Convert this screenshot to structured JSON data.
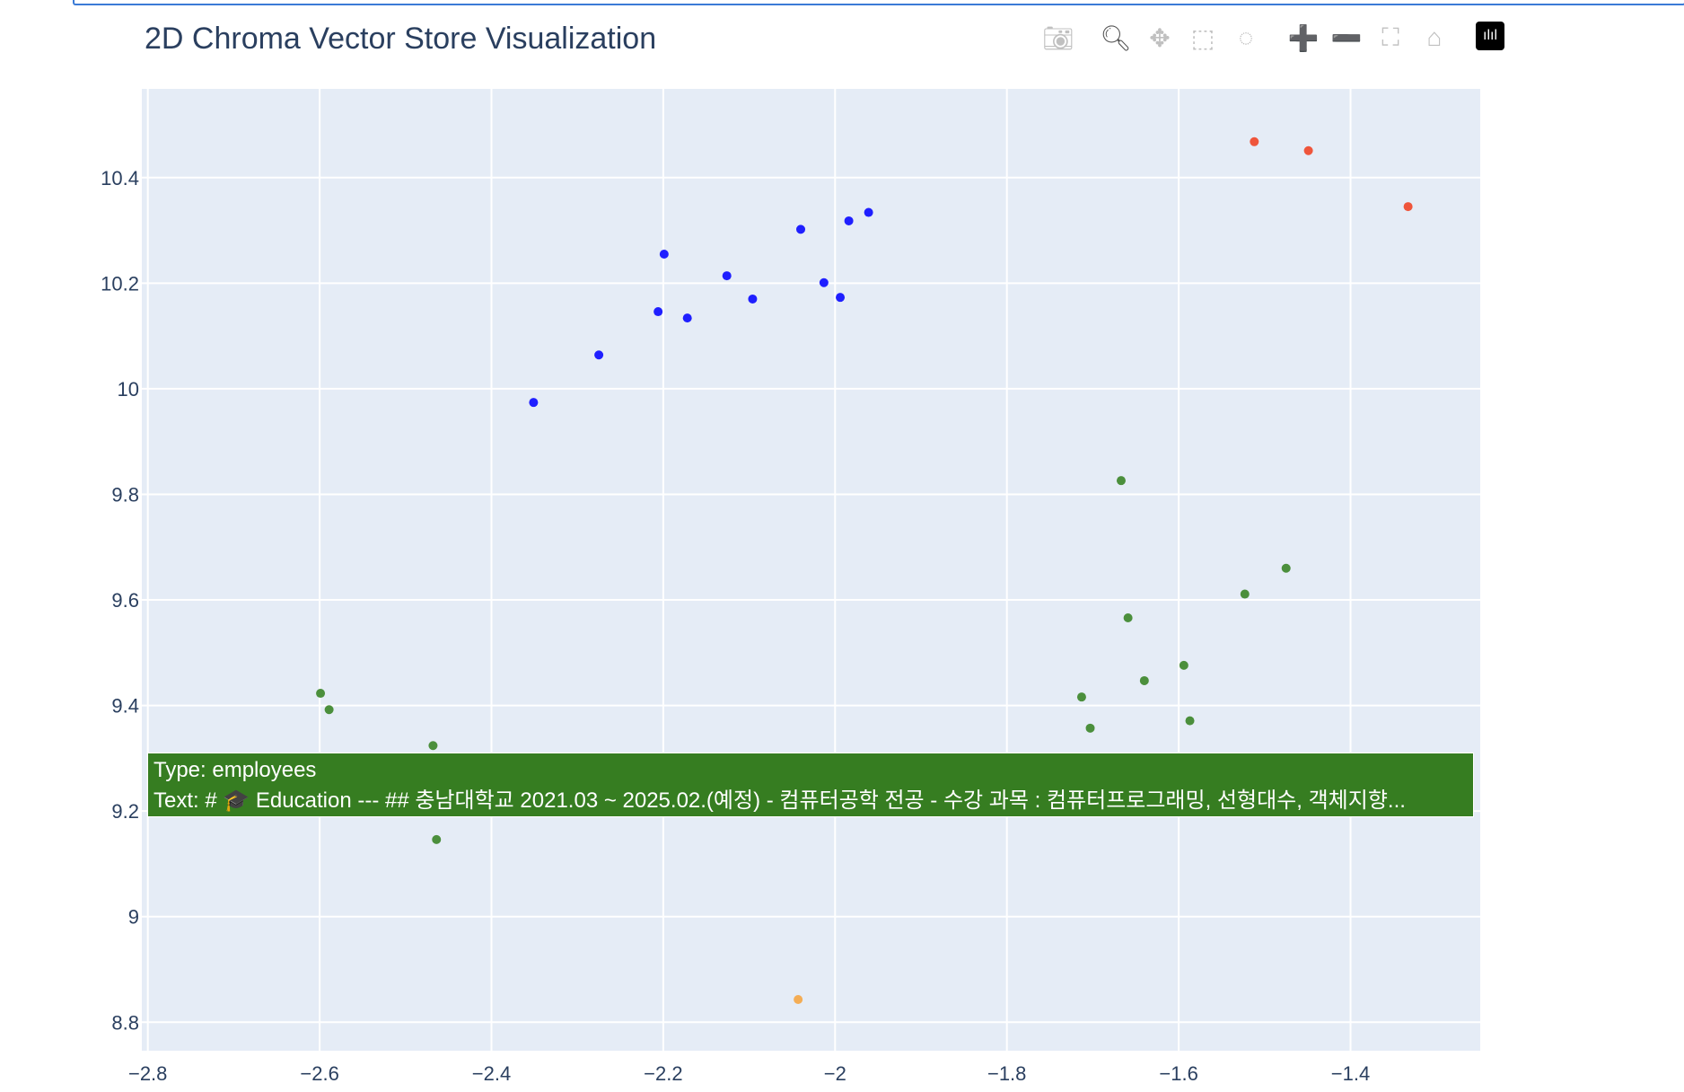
{
  "chart_data": {
    "type": "scatter",
    "title": "2D Chroma Vector Store Visualization",
    "xlim": [
      -2.807,
      -1.249
    ],
    "ylim": [
      8.746,
      10.568
    ],
    "x_ticks": [
      "−2.8",
      "−2.6",
      "−2.4",
      "−2.2",
      "−2",
      "−1.8",
      "−1.6",
      "−1.4"
    ],
    "x_tick_values": [
      -2.8,
      -2.6,
      -2.4,
      -2.2,
      -2.0,
      -1.8,
      -1.6,
      -1.4
    ],
    "y_ticks": [
      "8.8",
      "9",
      "9.2",
      "9.4",
      "9.6",
      "9.8",
      "10",
      "10.2",
      "10.4"
    ],
    "y_tick_values": [
      8.8,
      9.0,
      9.2,
      9.4,
      9.6,
      9.8,
      10.0,
      10.2,
      10.4
    ],
    "grid": true,
    "series": [
      {
        "color": "#1f1fff",
        "x": [
          -2.351,
          -2.275,
          -2.206,
          -2.199,
          -2.172,
          -2.126,
          -2.096,
          -2.04,
          -2.013,
          -1.994,
          -1.984,
          -1.961
        ],
        "y": [
          9.974,
          10.064,
          10.146,
          10.255,
          10.134,
          10.214,
          10.17,
          10.302,
          10.201,
          10.173,
          10.318,
          10.334
        ]
      },
      {
        "color": "#ef553b",
        "x": [
          -1.512,
          -1.449,
          -1.333
        ],
        "y": [
          10.468,
          10.451,
          10.345
        ]
      },
      {
        "color": "#4b8f3c",
        "x": [
          -1.667,
          -1.475,
          -1.523,
          -1.659,
          -1.594,
          -1.64,
          -1.713,
          -1.703,
          -1.587,
          -2.599,
          -2.589,
          -2.468,
          -2.464
        ],
        "y": [
          9.826,
          9.66,
          9.611,
          9.566,
          9.476,
          9.447,
          9.416,
          9.357,
          9.371,
          9.423,
          9.392,
          9.324,
          9.146
        ]
      },
      {
        "color": "#f4ad55",
        "x": [
          -2.043
        ],
        "y": [
          8.843
        ]
      }
    ],
    "tooltip": {
      "line1": "Type: employees",
      "line2": "Text: # 🎓 Education --- ## 충남대학교 2021.03 ~ 2025.02.(예정) - 컴퓨터공학 전공 - 수강 과목 : 컴퓨터프로그래밍, 선형대수, 객체지향...",
      "color": "#367d21"
    }
  },
  "modebar": [
    {
      "name": "camera-icon",
      "glyph": "📷︎"
    },
    {
      "name": "zoom-icon",
      "glyph": "🔍︎",
      "active": true
    },
    {
      "name": "pan-icon",
      "glyph": "✥"
    },
    {
      "name": "box-select-icon",
      "glyph": "⬚"
    },
    {
      "name": "lasso-select-icon",
      "glyph": "◌"
    },
    {
      "name": "zoom-in-icon",
      "glyph": "➕"
    },
    {
      "name": "zoom-out-icon",
      "glyph": "➖"
    },
    {
      "name": "autoscale-icon",
      "glyph": "⛶"
    },
    {
      "name": "reset-axes-home-icon",
      "glyph": "⌂"
    },
    {
      "name": "plotly-logo-icon",
      "glyph": "ılıl"
    }
  ]
}
